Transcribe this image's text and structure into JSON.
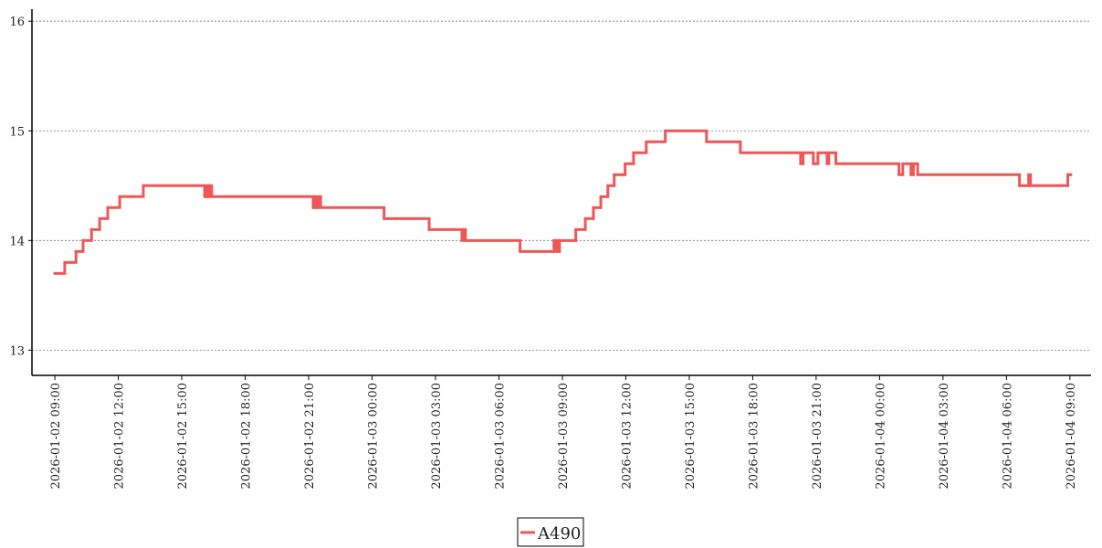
{
  "chart_data": {
    "type": "step-line",
    "xlim": [
      "2026-01-02 07:55",
      "2026-01-04 10:00"
    ],
    "xticks": [
      "2026-01-02 09:00",
      "2026-01-02 12:00",
      "2026-01-02 15:00",
      "2026-01-02 18:00",
      "2026-01-02 21:00",
      "2026-01-03 00:00",
      "2026-01-03 03:00",
      "2026-01-03 06:00",
      "2026-01-03 09:00",
      "2026-01-03 12:00",
      "2026-01-03 15:00",
      "2026-01-03 18:00",
      "2026-01-03 21:00",
      "2026-01-04 00:00",
      "2026-01-04 03:00",
      "2026-01-04 06:00",
      "2026-01-04 09:00"
    ],
    "ylim": [
      12.77,
      16.11
    ],
    "yticks": [
      13,
      14,
      15,
      16
    ],
    "grid": true,
    "legend": "bottom",
    "series": [
      {
        "name": "A490",
        "color": "#ef5656",
        "x": [
          "2026-01-02 09:00",
          "2026-01-02 09:28",
          "2026-01-02 10:00",
          "2026-01-02 10:20",
          "2026-01-02 10:44",
          "2026-01-02 11:07",
          "2026-01-02 11:30",
          "2026-01-02 12:04",
          "2026-01-02 13:11",
          "2026-01-02 16:05",
          "2026-01-02 16:10",
          "2026-01-02 16:15",
          "2026-01-02 16:20",
          "2026-01-02 16:25",
          "2026-01-02 21:13",
          "2026-01-02 21:17",
          "2026-01-02 21:22",
          "2026-01-02 21:27",
          "2026-01-02 21:34",
          "2026-01-03 00:34",
          "2026-01-03 02:42",
          "2026-01-03 04:15",
          "2026-01-03 04:20",
          "2026-01-03 04:25",
          "2026-01-03 07:00",
          "2026-01-03 08:36",
          "2026-01-03 08:40",
          "2026-01-03 08:45",
          "2026-01-03 08:48",
          "2026-01-03 08:52",
          "2026-01-03 09:38",
          "2026-01-03 10:05",
          "2026-01-03 10:28",
          "2026-01-03 10:49",
          "2026-01-03 11:09",
          "2026-01-03 11:27",
          "2026-01-03 11:58",
          "2026-01-03 12:22",
          "2026-01-03 12:58",
          "2026-01-03 13:52",
          "2026-01-03 15:49",
          "2026-01-03 17:25",
          "2026-01-03 20:16",
          "2026-01-03 20:23",
          "2026-01-03 20:52",
          "2026-01-03 21:05",
          "2026-01-03 21:31",
          "2026-01-03 21:36",
          "2026-01-03 21:56",
          "2026-01-04 00:55",
          "2026-01-04 01:06",
          "2026-01-04 01:29",
          "2026-01-04 01:36",
          "2026-01-04 01:48",
          "2026-01-04 06:37",
          "2026-01-04 07:03",
          "2026-01-04 07:08",
          "2026-01-04 08:54",
          "2026-01-04 09:00"
        ],
        "values": [
          13.7,
          13.8,
          13.9,
          14.0,
          14.1,
          14.2,
          14.3,
          14.4,
          14.5,
          14.4,
          14.5,
          14.4,
          14.5,
          14.4,
          14.3,
          14.4,
          14.3,
          14.4,
          14.3,
          14.2,
          14.1,
          14.0,
          14.1,
          14.0,
          13.9,
          14.0,
          13.9,
          14.0,
          13.9,
          14.0,
          14.1,
          14.2,
          14.3,
          14.4,
          14.5,
          14.6,
          14.7,
          14.8,
          14.9,
          15.0,
          14.9,
          14.8,
          14.7,
          14.8,
          14.7,
          14.8,
          14.7,
          14.8,
          14.7,
          14.6,
          14.7,
          14.6,
          14.7,
          14.6,
          14.5,
          14.6,
          14.5,
          14.6,
          14.6
        ]
      }
    ]
  }
}
